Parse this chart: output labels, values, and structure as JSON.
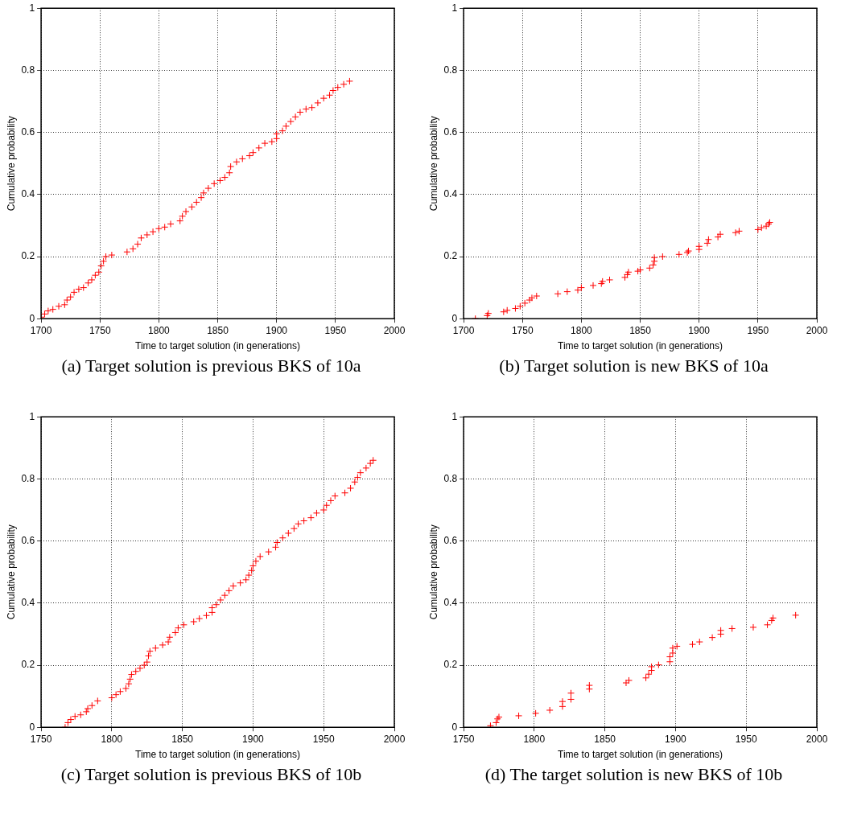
{
  "chart_data": [
    {
      "type": "scatter",
      "xlabel": "Time to target solution (in generations)",
      "ylabel": "Cumulative probability",
      "annotations": [
        "(a) Target solution is previous BKS of 10a"
      ],
      "xlim": [
        1700,
        2000
      ],
      "xticks": [
        1700,
        1750,
        1800,
        1850,
        1900,
        1950,
        2000
      ],
      "ylim": [
        0,
        1
      ],
      "yticks": [
        0,
        0.2,
        0.4,
        0.6,
        0.8,
        1
      ],
      "grid": true,
      "legend": false,
      "marker": "cross",
      "series": [
        {
          "color": "#ff0000",
          "x": [
            1700,
            1703,
            1706,
            1710,
            1715,
            1720,
            1722,
            1725,
            1728,
            1732,
            1736,
            1740,
            1743,
            1746,
            1749,
            1751,
            1753,
            1755,
            1760,
            1773,
            1778,
            1782,
            1785,
            1790,
            1795,
            1800,
            1805,
            1810,
            1818,
            1820,
            1823,
            1828,
            1832,
            1836,
            1838,
            1842,
            1847,
            1852,
            1856,
            1860,
            1861,
            1866,
            1871,
            1877,
            1880,
            1885,
            1890,
            1896,
            1900,
            1900,
            1905,
            1908,
            1912,
            1916,
            1920,
            1925,
            1930,
            1935,
            1940,
            1945,
            1948,
            1952,
            1957,
            1962
          ],
          "values": [
            0.005,
            0.015,
            0.025,
            0.03,
            0.04,
            0.045,
            0.06,
            0.07,
            0.085,
            0.095,
            0.1,
            0.115,
            0.125,
            0.14,
            0.15,
            0.17,
            0.185,
            0.2,
            0.205,
            0.215,
            0.225,
            0.24,
            0.26,
            0.27,
            0.28,
            0.29,
            0.295,
            0.305,
            0.315,
            0.33,
            0.345,
            0.36,
            0.375,
            0.39,
            0.405,
            0.42,
            0.435,
            0.445,
            0.455,
            0.47,
            0.49,
            0.505,
            0.515,
            0.525,
            0.535,
            0.55,
            0.565,
            0.57,
            0.58,
            0.595,
            0.605,
            0.62,
            0.635,
            0.65,
            0.665,
            0.675,
            0.68,
            0.695,
            0.71,
            0.72,
            0.735,
            0.745,
            0.755,
            0.765
          ]
        }
      ]
    },
    {
      "type": "scatter",
      "xlabel": "Time to target solution (in generations)",
      "ylabel": "Cumulative probability",
      "annotations": [
        "(b) Target solution is new BKS of 10a"
      ],
      "xlim": [
        1700,
        2000
      ],
      "xticks": [
        1700,
        1750,
        1800,
        1850,
        1900,
        1950,
        2000
      ],
      "ylim": [
        0,
        1
      ],
      "yticks": [
        0,
        0.2,
        0.4,
        0.6,
        0.8,
        1
      ],
      "grid": true,
      "legend": false,
      "marker": "cross",
      "series": [
        {
          "color": "#ff0000",
          "x": [
            1710,
            1720,
            1721,
            1734,
            1737,
            1744,
            1748,
            1752,
            1756,
            1758,
            1762,
            1780,
            1788,
            1797,
            1800,
            1810,
            1817,
            1818,
            1824,
            1837,
            1839,
            1840,
            1848,
            1850,
            1858,
            1861,
            1862,
            1862,
            1869,
            1883,
            1890,
            1891,
            1900,
            1900,
            1907,
            1908,
            1916,
            1918,
            1931,
            1934,
            1950,
            1953,
            1957,
            1959,
            1960
          ],
          "values": [
            0,
            0.01,
            0.017,
            0.022,
            0.027,
            0.033,
            0.04,
            0.05,
            0.06,
            0.067,
            0.073,
            0.08,
            0.087,
            0.092,
            0.1,
            0.107,
            0.113,
            0.12,
            0.125,
            0.133,
            0.142,
            0.15,
            0.153,
            0.157,
            0.163,
            0.173,
            0.185,
            0.197,
            0.2,
            0.207,
            0.213,
            0.218,
            0.223,
            0.233,
            0.243,
            0.255,
            0.263,
            0.272,
            0.277,
            0.282,
            0.287,
            0.293,
            0.298,
            0.305,
            0.31
          ]
        }
      ]
    },
    {
      "type": "scatter",
      "xlabel": "Time to target solution (in generations)",
      "ylabel": "Cumulative probability",
      "annotations": [
        "(c) Target solution is previous BKS of 10b"
      ],
      "xlim": [
        1750,
        2000
      ],
      "xticks": [
        1750,
        1800,
        1850,
        1900,
        1950,
        2000
      ],
      "ylim": [
        0,
        1
      ],
      "yticks": [
        0,
        0.2,
        0.4,
        0.6,
        0.8,
        1
      ],
      "grid": true,
      "legend": false,
      "marker": "cross",
      "series": [
        {
          "color": "#ff0000",
          "x": [
            1767,
            1769,
            1771,
            1774,
            1778,
            1782,
            1783,
            1786,
            1790,
            1800,
            1803,
            1806,
            1810,
            1812,
            1813,
            1814,
            1817,
            1820,
            1823,
            1825,
            1826,
            1827,
            1831,
            1836,
            1840,
            1841,
            1845,
            1847,
            1851,
            1858,
            1862,
            1867,
            1871,
            1871,
            1874,
            1877,
            1880,
            1883,
            1886,
            1891,
            1895,
            1897,
            1899,
            1900,
            1902,
            1905,
            1911,
            1916,
            1917,
            1921,
            1925,
            1929,
            1932,
            1936,
            1941,
            1945,
            1950,
            1952,
            1955,
            1958,
            1965,
            1969,
            1972,
            1974,
            1976,
            1980,
            1983,
            1985
          ],
          "values": [
            0,
            0.015,
            0.025,
            0.035,
            0.04,
            0.05,
            0.06,
            0.07,
            0.085,
            0.095,
            0.105,
            0.115,
            0.125,
            0.14,
            0.155,
            0.17,
            0.18,
            0.19,
            0.2,
            0.21,
            0.23,
            0.245,
            0.255,
            0.265,
            0.275,
            0.29,
            0.305,
            0.32,
            0.33,
            0.34,
            0.35,
            0.36,
            0.37,
            0.385,
            0.395,
            0.41,
            0.425,
            0.44,
            0.455,
            0.465,
            0.475,
            0.49,
            0.505,
            0.52,
            0.535,
            0.55,
            0.565,
            0.58,
            0.595,
            0.61,
            0.625,
            0.64,
            0.655,
            0.665,
            0.675,
            0.69,
            0.7,
            0.715,
            0.73,
            0.745,
            0.755,
            0.77,
            0.79,
            0.805,
            0.82,
            0.835,
            0.85,
            0.86
          ]
        }
      ]
    },
    {
      "type": "scatter",
      "xlabel": "Time to target solution (in generations)",
      "ylabel": "Cumulative probability",
      "annotations": [
        "(d) The target solution is new BKS of 10b"
      ],
      "xlim": [
        1750,
        2000
      ],
      "xticks": [
        1750,
        1800,
        1850,
        1900,
        1950,
        2000
      ],
      "ylim": [
        0,
        1
      ],
      "yticks": [
        0,
        0.2,
        0.4,
        0.6,
        0.8,
        1
      ],
      "grid": true,
      "legend": false,
      "marker": "cross",
      "series": [
        {
          "color": "#ff0000",
          "x": [
            1769,
            1773,
            1774,
            1775,
            1789,
            1801,
            1811,
            1820,
            1820,
            1826,
            1826,
            1839,
            1839,
            1865,
            1867,
            1879,
            1881,
            1883,
            1883,
            1888,
            1896,
            1896,
            1898,
            1898,
            1901,
            1912,
            1917,
            1926,
            1932,
            1932,
            1940,
            1955,
            1965,
            1968,
            1969,
            1985
          ],
          "values": [
            0.005,
            0.015,
            0.027,
            0.033,
            0.037,
            0.045,
            0.055,
            0.067,
            0.083,
            0.09,
            0.11,
            0.123,
            0.135,
            0.143,
            0.151,
            0.159,
            0.171,
            0.183,
            0.195,
            0.201,
            0.211,
            0.227,
            0.239,
            0.255,
            0.261,
            0.267,
            0.275,
            0.289,
            0.3,
            0.312,
            0.318,
            0.322,
            0.33,
            0.344,
            0.352,
            0.361
          ]
        }
      ]
    }
  ]
}
